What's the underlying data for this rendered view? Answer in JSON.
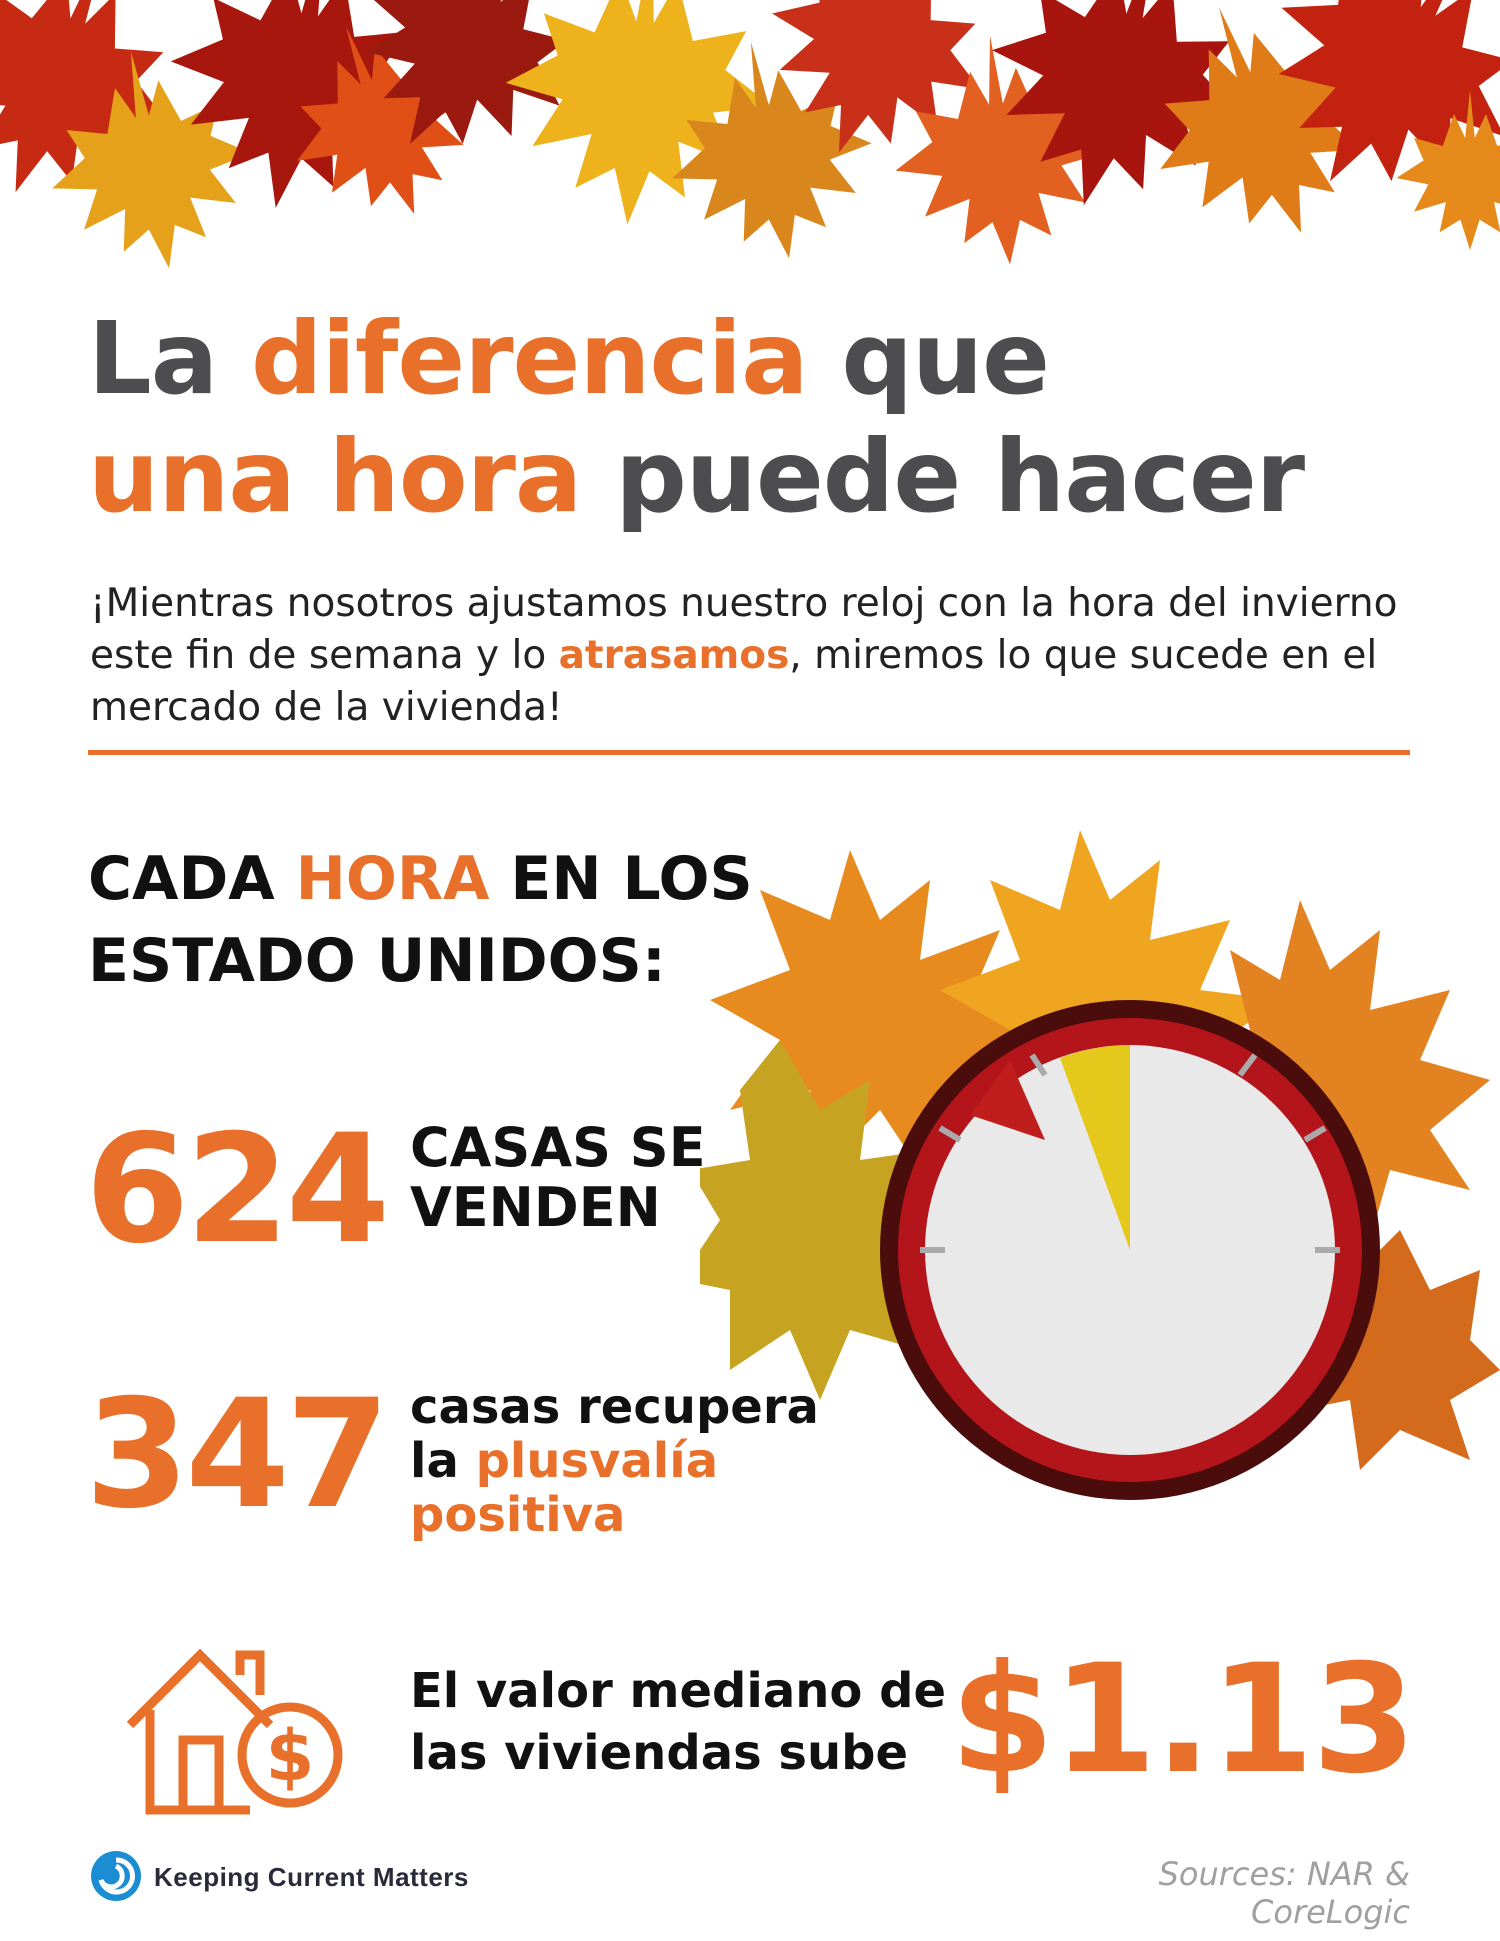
{
  "headline": {
    "part1": "La ",
    "part2_highlight": "diferencia",
    "part3": " que",
    "part4_highlight": "una hora",
    "part5": " puede hacer"
  },
  "intro": {
    "part1": "¡Mientras nosotros ajustamos nuestro reloj con la hora del invierno este fin de semana y lo ",
    "highlight": "atrasamos",
    "part2": ", miremos lo que sucede en el mercado de la vivienda!"
  },
  "section_title": {
    "part1": "CADA ",
    "highlight": "HORA",
    "part2": " EN LOS ESTADO UNIDOS:"
  },
  "stats": [
    {
      "value": "624",
      "label": "CASAS SE VENDEN"
    },
    {
      "value": "347",
      "label_part1": "casas recupera",
      "label_part2": "la ",
      "label_highlight": "plusvalía positiva"
    },
    {
      "value": "$1.13",
      "label": "El valor mediano de las viviendas sube"
    }
  ],
  "logo": {
    "text": "Keeping Current Matters"
  },
  "sources": "Sources: NAR & CoreLogic",
  "colors": {
    "accent": "#e8702a",
    "headline_gray": "#4d4d4f",
    "clock_red": "#b3151b",
    "logo_blue": "#1b8ed3"
  },
  "icons": [
    "maple-leaves-decoration",
    "clock-icon",
    "house-icon",
    "dollar-coin-icon",
    "logo-swirl-icon"
  ]
}
